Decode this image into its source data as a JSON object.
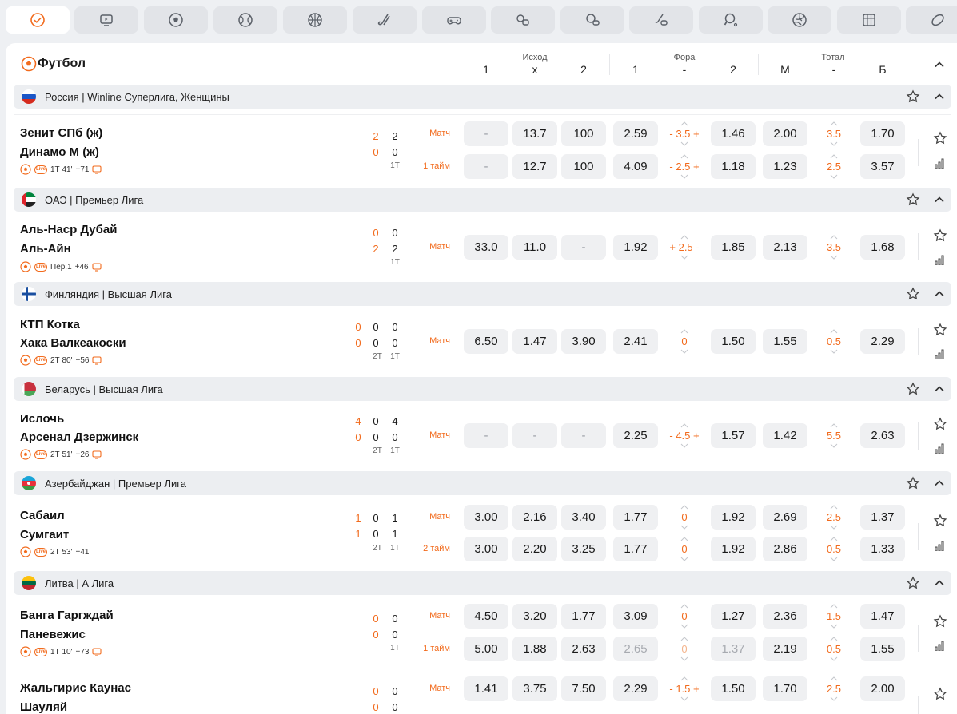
{
  "header": {
    "sport_title": "Футбол",
    "group_outcome": "Исход",
    "group_handicap": "Фора",
    "group_total": "Тотал",
    "cols": [
      "1",
      "х",
      "2",
      "1",
      "-",
      "2",
      "М",
      "-",
      "Б"
    ]
  },
  "tabs": [
    "check",
    "tv",
    "soccer",
    "tennis",
    "basketball",
    "hockey-stick",
    "gamepad",
    "table-games",
    "esports-2",
    "billiards",
    "table-tennis",
    "volleyball",
    "table-grid",
    "rugby"
  ],
  "colors": {
    "accent": "#f26b1d",
    "cell_bg": "#eff0f2",
    "league_bg": "#eceef1"
  },
  "leagues": [
    {
      "name": "Россия | Winline Суперлига, Женщины",
      "flag": "ru"
    },
    {
      "name": "ОАЭ | Премьер Лига",
      "flag": "ae"
    },
    {
      "name": "Финляндия | Высшая Лига",
      "flag": "fi"
    },
    {
      "name": "Беларусь | Высшая Лига",
      "flag": "by"
    },
    {
      "name": "Азербайджан | Премьер Лига",
      "flag": "az"
    },
    {
      "name": "Литва | А Лига",
      "flag": "lt"
    }
  ],
  "matches": [
    {
      "team1": "Зенит СПб (ж)",
      "team2": "Динамо М (ж)",
      "meta": "1Т 41'",
      "more": "+71",
      "tv": true,
      "scores": {
        "c1": [
          "2",
          "0"
        ],
        "c2": [
          "2",
          "0"
        ]
      },
      "periods": [
        "1Т"
      ],
      "lines": [
        {
          "type": "Матч",
          "w1": "-",
          "x": "13.7",
          "w2": "100",
          "f1": "2.59",
          "fora": "3.5",
          "f2": "1.46",
          "tm": "2.00",
          "total": "3.5",
          "tb": "1.70"
        },
        {
          "type": "1 тайм",
          "w1": "-",
          "x": "12.7",
          "w2": "100",
          "f1": "4.09",
          "fora": "2.5",
          "f2": "1.18",
          "tm": "1.23",
          "total": "2.5",
          "tb": "3.57"
        }
      ]
    },
    {
      "team1": "Аль-Наср Дубай",
      "team2": "Аль-Айн",
      "meta": "Пер.1",
      "more": "+46",
      "tv": true,
      "scores": {
        "c1": [
          "0",
          "2"
        ],
        "c2": [
          "0",
          "2"
        ]
      },
      "periods": [
        "1Т"
      ],
      "lines": [
        {
          "type": "Матч",
          "w1": "33.0",
          "x": "11.0",
          "w2": "-",
          "f1": "1.92",
          "fora": "2.5",
          "f2": "1.85",
          "tm": "2.13",
          "total": "3.5",
          "tb": "1.68"
        }
      ]
    },
    {
      "team1": "КТП Котка",
      "team2": "Хака Валкеакоски",
      "meta": "2Т 80'",
      "more": "+56",
      "tv": true,
      "scores": {
        "c0": [
          "0",
          "0"
        ],
        "c1": [
          "0",
          "0"
        ],
        "c2": [
          "0",
          "0"
        ]
      },
      "periods": [
        "2Т",
        "1Т"
      ],
      "lines": [
        {
          "type": "Матч",
          "w1": "6.50",
          "x": "1.47",
          "w2": "3.90",
          "f1": "2.41",
          "fora": "0",
          "f2": "1.50",
          "tm": "1.55",
          "total": "0.5",
          "tb": "2.29"
        }
      ]
    },
    {
      "team1": "Ислочь",
      "team2": "Арсенал Дзержинск",
      "meta": "2Т 51'",
      "more": "+26",
      "tv": true,
      "scores": {
        "c0": [
          "4",
          "0"
        ],
        "c1": [
          "0",
          "0"
        ],
        "c2": [
          "4",
          "0"
        ]
      },
      "periods": [
        "2Т",
        "1Т"
      ],
      "lines": [
        {
          "type": "Матч",
          "w1": "-",
          "x": "-",
          "w2": "-",
          "f1": "2.25",
          "fora": "4.5",
          "f2": "1.57",
          "tm": "1.42",
          "total": "5.5",
          "tb": "2.63"
        }
      ]
    },
    {
      "team1": "Сабаил",
      "team2": "Сумгаит",
      "meta": "2Т 53'",
      "more": "+41",
      "tv": false,
      "scores": {
        "c0": [
          "1",
          "1"
        ],
        "c1": [
          "0",
          "0"
        ],
        "c2": [
          "1",
          "1"
        ]
      },
      "periods": [
        "2Т",
        "1Т"
      ],
      "lines": [
        {
          "type": "Матч",
          "w1": "3.00",
          "x": "2.16",
          "w2": "3.40",
          "f1": "1.77",
          "fora": "0",
          "f2": "1.92",
          "tm": "2.69",
          "total": "2.5",
          "tb": "1.37"
        },
        {
          "type": "2 тайм",
          "w1": "3.00",
          "x": "2.20",
          "w2": "3.25",
          "f1": "1.77",
          "fora": "0",
          "f2": "1.92",
          "tm": "2.86",
          "total": "0.5",
          "tb": "1.33"
        }
      ]
    },
    {
      "team1": "Банга Гаргждай",
      "team2": "Паневежис",
      "meta": "1Т 10'",
      "more": "+73",
      "tv": true,
      "scores": {
        "c1": [
          "0",
          "0"
        ],
        "c2": [
          "0",
          "0"
        ]
      },
      "periods": [
        "1Т"
      ],
      "lines": [
        {
          "type": "Матч",
          "w1": "4.50",
          "x": "3.20",
          "w2": "1.77",
          "f1": "3.09",
          "fora": "0",
          "f2": "1.27",
          "tm": "2.36",
          "total": "1.5",
          "tb": "1.47"
        },
        {
          "type": "1 тайм",
          "w1": "5.00",
          "x": "1.88",
          "w2": "2.63",
          "f1": "2.65",
          "fora": "0",
          "f2": "1.37",
          "tm": "2.19",
          "total": "0.5",
          "tb": "1.55"
        }
      ]
    },
    {
      "team1": "Жальгирис Каунас",
      "team2": "Шауляй",
      "scores": {
        "c1": [
          "0",
          "0"
        ],
        "c2": [
          "0",
          "0"
        ]
      },
      "lines": [
        {
          "type": "Матч",
          "w1": "1.41",
          "x": "3.75",
          "w2": "7.50",
          "f1": "2.29",
          "fora": "1.5",
          "f2": "1.50",
          "tm": "1.70",
          "total": "2.5",
          "tb": "2.00"
        }
      ]
    }
  ]
}
